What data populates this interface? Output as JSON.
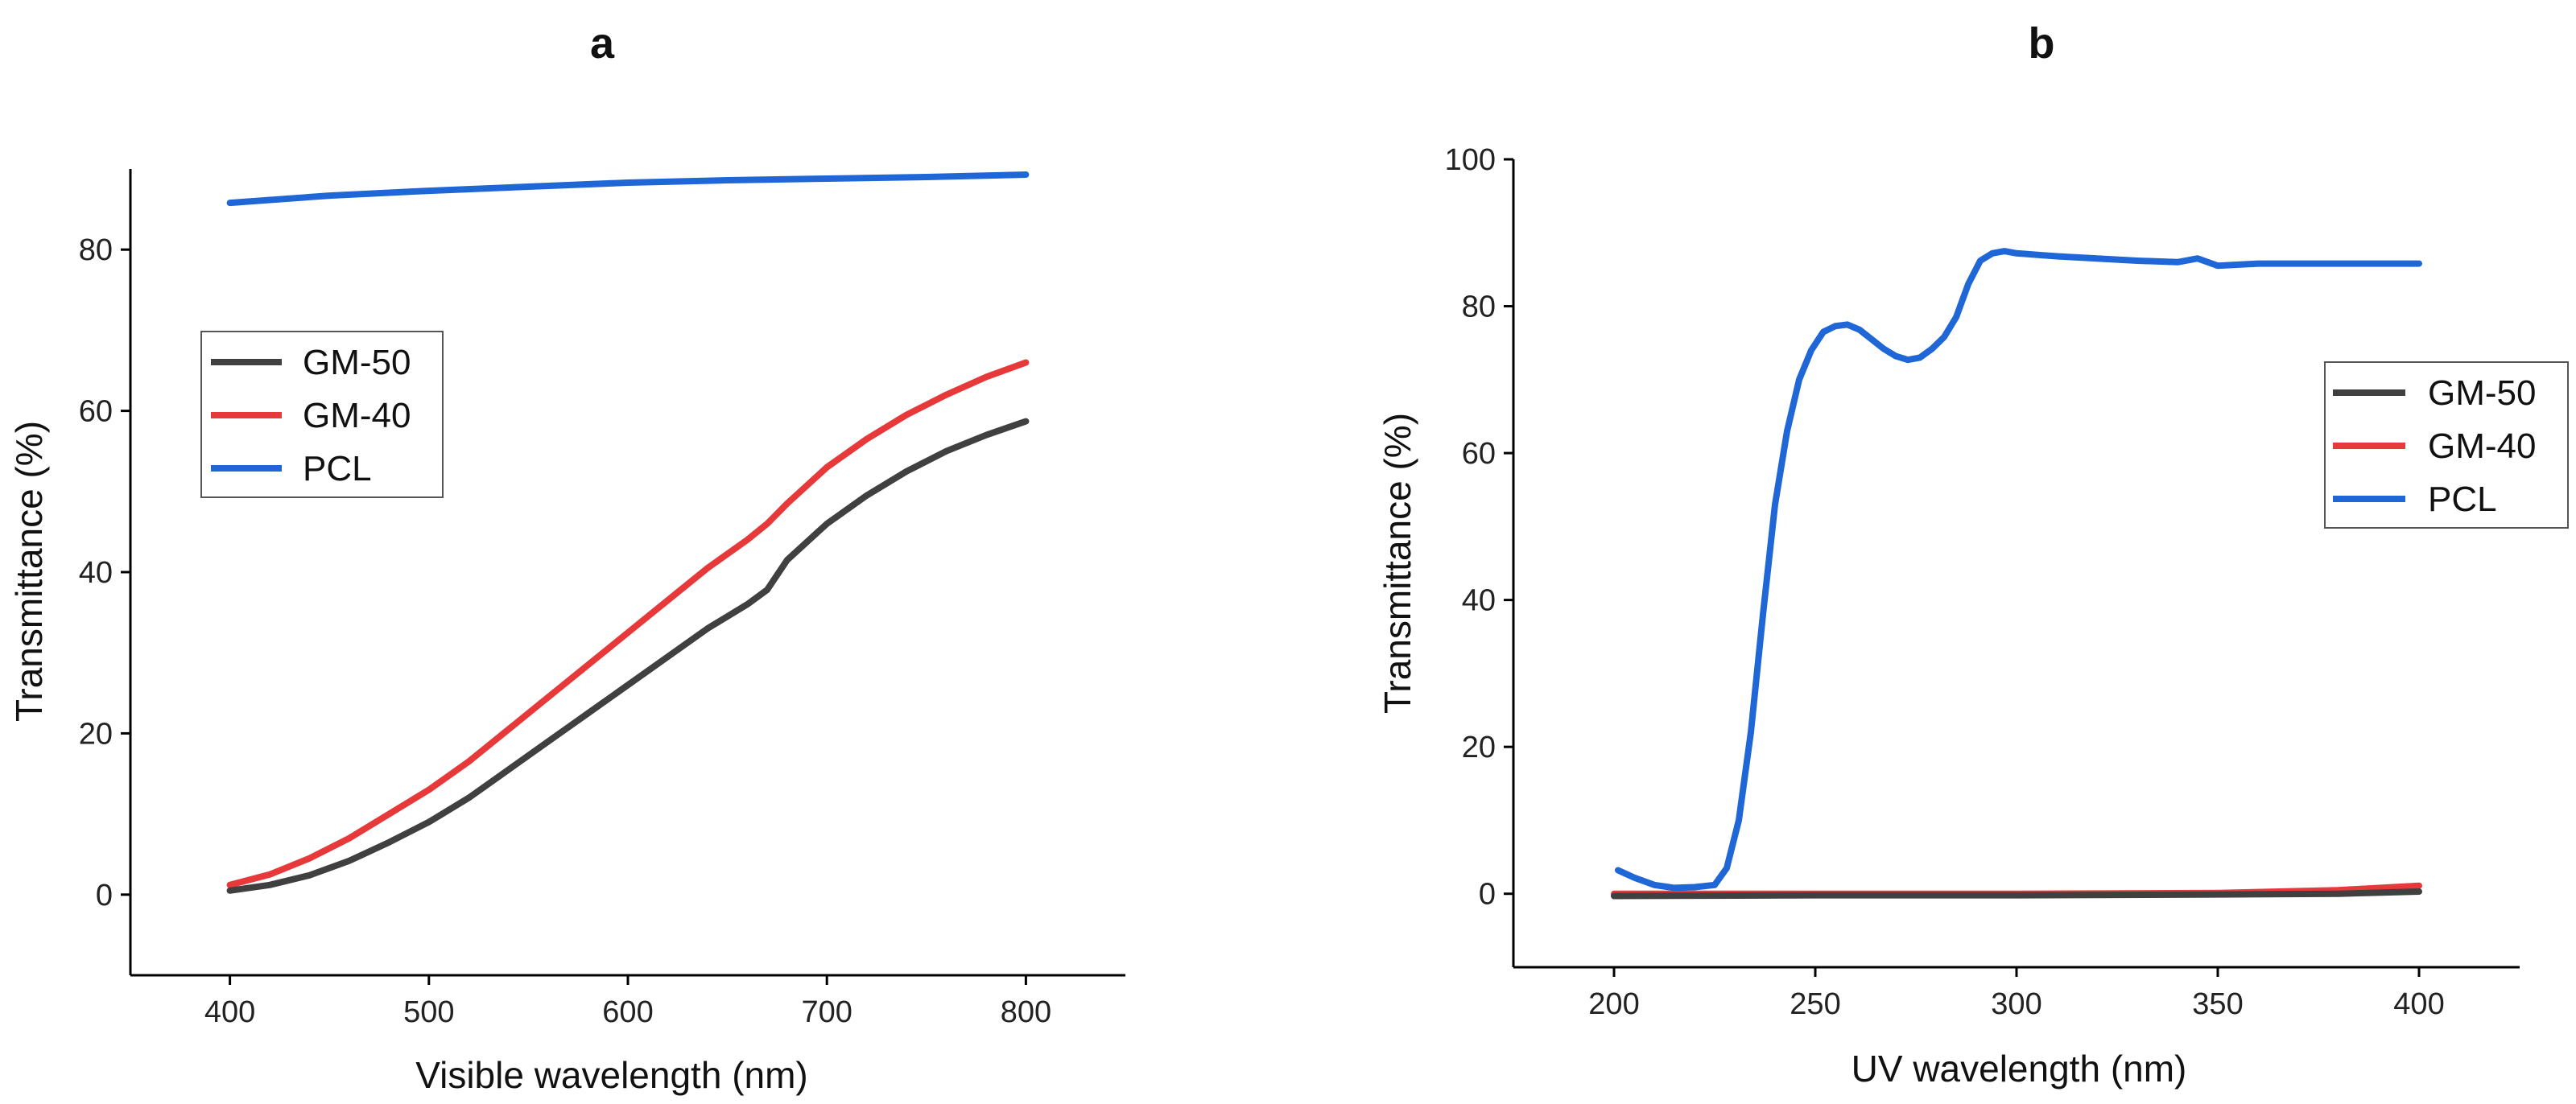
{
  "chart_data": [
    {
      "type": "line",
      "panel": "a",
      "title": "a",
      "xlabel": "Visible wavelength (nm)",
      "ylabel": "Transmittance (%)",
      "xlim": [
        350,
        850
      ],
      "ylim": [
        -10,
        90
      ],
      "xticks": [
        400,
        500,
        600,
        700,
        800
      ],
      "yticks": [
        0,
        20,
        40,
        60,
        80
      ],
      "legend_position": "center-left",
      "series": [
        {
          "name": "GM-50",
          "color": "#404040",
          "x": [
            400,
            420,
            440,
            460,
            480,
            500,
            520,
            540,
            560,
            580,
            600,
            620,
            640,
            660,
            670,
            680,
            700,
            720,
            740,
            760,
            780,
            800
          ],
          "y": [
            0.5,
            1.2,
            2.4,
            4.2,
            6.5,
            9,
            12,
            15.5,
            19,
            22.5,
            26,
            29.5,
            33,
            36,
            37.8,
            41.5,
            46,
            49.5,
            52.5,
            55,
            57,
            58.7
          ]
        },
        {
          "name": "GM-40",
          "color": "#e8393a",
          "x": [
            400,
            420,
            440,
            460,
            480,
            500,
            520,
            540,
            560,
            580,
            600,
            620,
            640,
            660,
            670,
            680,
            700,
            720,
            740,
            760,
            780,
            800
          ],
          "y": [
            1.2,
            2.5,
            4.5,
            7,
            10,
            13,
            16.5,
            20.5,
            24.5,
            28.5,
            32.5,
            36.5,
            40.5,
            44,
            46,
            48.5,
            53,
            56.5,
            59.5,
            62,
            64.2,
            66
          ]
        },
        {
          "name": "PCL",
          "color": "#1f66d6",
          "x": [
            400,
            450,
            500,
            550,
            600,
            650,
            700,
            750,
            800
          ],
          "y": [
            85.8,
            86.7,
            87.3,
            87.8,
            88.3,
            88.6,
            88.8,
            89,
            89.3
          ]
        }
      ]
    },
    {
      "type": "line",
      "panel": "b",
      "title": "b",
      "xlabel": "UV wavelength (nm)",
      "ylabel": "Transmittance (%)",
      "xlim": [
        175,
        425
      ],
      "ylim": [
        -10,
        100
      ],
      "xticks": [
        200,
        250,
        300,
        350,
        400
      ],
      "yticks": [
        0,
        20,
        40,
        60,
        80,
        100
      ],
      "legend_position": "right",
      "series": [
        {
          "name": "GM-50",
          "color": "#404040",
          "x": [
            200,
            250,
            300,
            350,
            380,
            400
          ],
          "y": [
            -0.3,
            -0.2,
            -0.2,
            -0.1,
            0,
            0.3
          ]
        },
        {
          "name": "GM-40",
          "color": "#e8393a",
          "x": [
            200,
            250,
            300,
            350,
            380,
            400
          ],
          "y": [
            0,
            0,
            0,
            0.1,
            0.5,
            1.1
          ]
        },
        {
          "name": "PCL",
          "color": "#1f66d6",
          "x": [
            201,
            205,
            210,
            215,
            220,
            225,
            228,
            231,
            234,
            237,
            240,
            243,
            246,
            249,
            252,
            255,
            258,
            261,
            264,
            267,
            270,
            273,
            276,
            279,
            282,
            285,
            288,
            291,
            294,
            297,
            300,
            310,
            320,
            330,
            340,
            345,
            350,
            360,
            370,
            380,
            390,
            400
          ],
          "y": [
            3.2,
            2.2,
            1.2,
            0.8,
            0.9,
            1.2,
            3.5,
            10,
            22,
            38,
            53,
            63,
            70,
            74,
            76.5,
            77.3,
            77.5,
            76.8,
            75.5,
            74.2,
            73.2,
            72.7,
            73,
            74.2,
            75.8,
            78.5,
            83,
            86.2,
            87.2,
            87.5,
            87.2,
            86.8,
            86.5,
            86.2,
            86,
            86.5,
            85.5,
            85.8,
            85.8,
            85.8,
            85.8,
            85.8
          ]
        }
      ]
    }
  ]
}
